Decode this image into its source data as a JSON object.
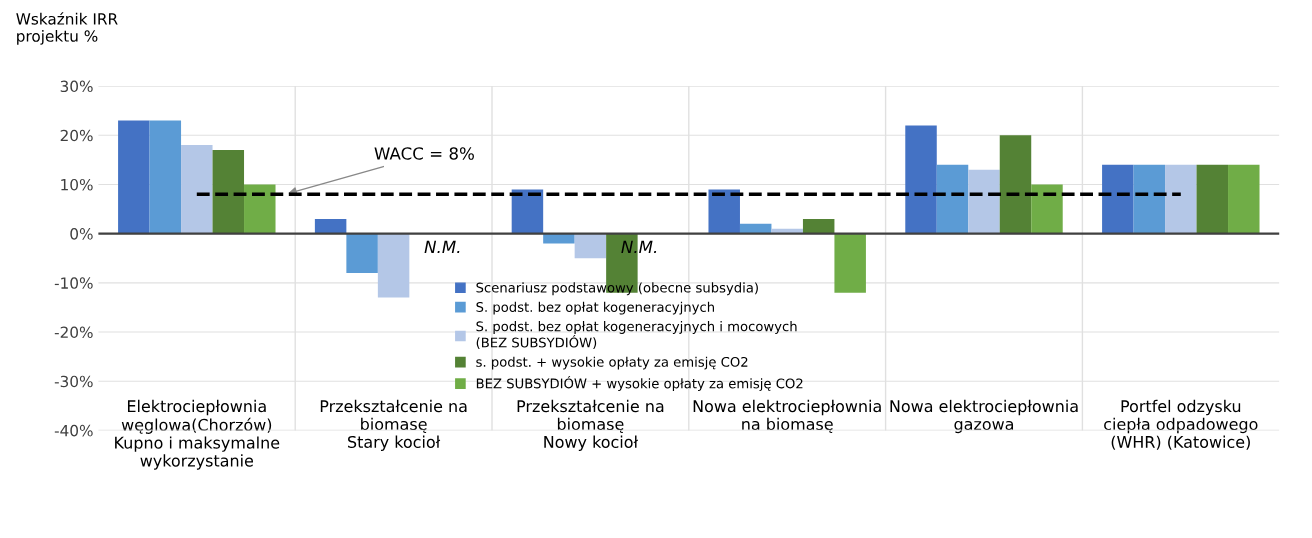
{
  "chart_data": {
    "type": "bar",
    "ylabel": "Wskaźnik IRR\nprojektu %",
    "categories": [
      "Elektrociepłownia\nwęglowa(Chorzów)\nKupno i maksymalne\nwykorzystanie",
      "Przekształcenie na\nbiomasę\nStary kocioł",
      "Przekształcenie na\nbiomasę\nNowy kocioł",
      "Nowa elektrociepłownia\nna biomasę",
      "Nowa elektrociepłownia\ngazowa",
      "Portfel odzysku\nciepła odpadowego\n(WHR) (Katowice)"
    ],
    "series": [
      {
        "name": "Scenariusz podstawowy (obecne subsydia)",
        "color": "#4472c4",
        "values": [
          23,
          3,
          9,
          9,
          22,
          14
        ]
      },
      {
        "name": "S. podst. bez opłat kogeneracyjnych",
        "color": "#5b9bd5",
        "values": [
          23,
          -8,
          -2,
          2,
          14,
          14
        ]
      },
      {
        "name": "S. podst. bez opłat kogeneracyjnych i mocowych\n(BEZ SUBSYDIÓW)",
        "color": "#b4c7e7",
        "values": [
          18,
          -13,
          -5,
          1,
          13,
          14
        ]
      },
      {
        "name": "s. podst. + wysokie opłaty za emisję CO2",
        "color": "#548235",
        "values": [
          17,
          null,
          -12,
          3,
          20,
          14
        ]
      },
      {
        "name": "BEZ SUBSYDIÓW + wysokie opłaty za emisję CO2",
        "color": "#70ad47",
        "values": [
          10,
          null,
          null,
          -12,
          10,
          14
        ]
      }
    ],
    "ylim": [
      -40,
      30
    ],
    "yticks": [
      {
        "value": -40,
        "label": "-40%"
      },
      {
        "value": -30,
        "label": "-30%"
      },
      {
        "value": -20,
        "label": "-20%"
      },
      {
        "value": -10,
        "label": "-10%"
      },
      {
        "value": 0,
        "label": "0%"
      },
      {
        "value": 10,
        "label": "10%"
      },
      {
        "value": 20,
        "label": "20%"
      },
      {
        "value": 30,
        "label": "30%"
      }
    ],
    "ref_lines": [
      {
        "axis": "y",
        "value": 8,
        "label": "WACC = 8%",
        "color": "#000000",
        "line_style": "dashed"
      }
    ],
    "annotations": [
      "N.M.",
      "N.M."
    ],
    "grid": true,
    "legend": "bottom"
  }
}
